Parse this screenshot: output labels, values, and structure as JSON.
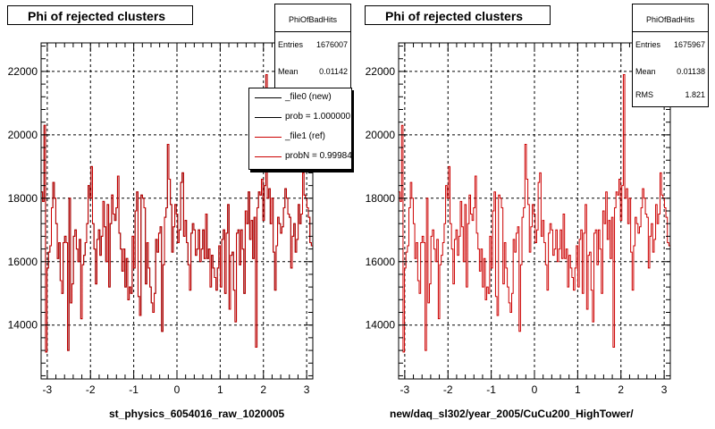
{
  "chart_data": [
    {
      "type": "line",
      "title": "Phi of rejected clusters",
      "xlabel": "st_physics_6054016_raw_1020005",
      "ylabel": "",
      "xlim": [
        -3.142,
        3.142
      ],
      "ylim": [
        12300,
        22900
      ],
      "grid": true,
      "x_ticks": [
        -3,
        -2,
        -1,
        0,
        1,
        2,
        3
      ],
      "y_ticks": [
        14000,
        16000,
        18000,
        20000,
        22000
      ],
      "stats": {
        "name": "PhiOfBadHits",
        "rows": [
          {
            "key": "Entries",
            "value": "1676007"
          },
          {
            "key": "Mean",
            "value": "0.01142"
          }
        ]
      },
      "legend": {
        "placement": "top-right",
        "entries": [
          {
            "label": "_file0 (new)",
            "color": "#000000"
          },
          {
            "label": "prob = 1.000000",
            "color": "#000000"
          },
          {
            "label": "_file1 (ref)",
            "color": "#cc0000"
          },
          {
            "label": "probN = 0.999843",
            "color": "#cc0000"
          }
        ]
      },
      "series": [
        {
          "color": "#000000",
          "values": [
            18200,
            17900,
            20300,
            13150,
            15800,
            16300,
            16500,
            17700,
            18500,
            18000,
            17200,
            16100,
            16600,
            15400,
            15000,
            16600,
            16800,
            16600,
            13200,
            18000,
            14700,
            15300,
            16800,
            17000,
            16400,
            16000,
            16700,
            14200,
            15900,
            16200,
            16600,
            17200,
            18400,
            18000,
            19000,
            17200,
            16400,
            15300,
            16700,
            17000,
            16200,
            16800,
            17900,
            17100,
            16000,
            17800,
            15200,
            17200,
            18100,
            17500,
            17300,
            17700,
            18700,
            16900,
            16400,
            15700,
            16400,
            15200,
            16100,
            14800,
            15200,
            15000,
            16800,
            15800,
            17600,
            18200,
            14900,
            14300,
            18100,
            18000,
            17700,
            15300,
            16600,
            15800,
            15200,
            14700,
            14400,
            15000,
            16700,
            16300,
            16900,
            17100,
            13800,
            15900,
            17400,
            17700,
            19700,
            18600,
            17800,
            16300,
            17100,
            17800,
            17500,
            16600,
            17000,
            18500,
            18800,
            16800,
            17300,
            16600,
            15900,
            15100,
            16900,
            17200,
            17000,
            16200,
            16400,
            17000,
            16000,
            16400,
            17000,
            16100,
            17500,
            16100,
            16400,
            15200,
            16200,
            15800,
            15500,
            15100,
            15800,
            16500,
            15200,
            16700,
            17000,
            15000,
            16900,
            17800,
            14500,
            16200,
            16300,
            15100,
            14100,
            16900,
            17000,
            15900,
            17000,
            16400,
            15000,
            17600,
            17200,
            18200,
            16700,
            17300,
            16100,
            17400,
            13300,
            17700,
            18200,
            18100,
            18600,
            17300,
            18400,
            21900,
            18000,
            18300,
            17200,
            18000,
            16300,
            15100,
            16500,
            17400,
            17200,
            16900,
            17100,
            17700,
            18300,
            18000,
            17500,
            17400,
            15800,
            16800,
            17200,
            16300,
            16700,
            17800,
            17200,
            17500,
            18800,
            18100,
            18000,
            17700,
            17400,
            16600,
            16500
          ]
        },
        {
          "color": "#cc0000",
          "values": [
            18200,
            17900,
            20300,
            13150,
            15800,
            16300,
            16500,
            17700,
            18500,
            18000,
            17200,
            16100,
            16600,
            15400,
            15000,
            16600,
            16800,
            16600,
            13200,
            18000,
            14700,
            15300,
            16800,
            17000,
            16400,
            16000,
            16700,
            14200,
            15900,
            16200,
            16600,
            17200,
            18400,
            18000,
            19000,
            17200,
            16400,
            15300,
            16700,
            17000,
            16200,
            16800,
            17900,
            17100,
            16000,
            17800,
            15200,
            17200,
            18100,
            17500,
            17300,
            17700,
            18700,
            16900,
            16400,
            15700,
            16400,
            15200,
            16100,
            14800,
            15200,
            15000,
            16800,
            15800,
            17600,
            18200,
            14900,
            14300,
            18100,
            18000,
            17700,
            15300,
            16600,
            15800,
            15200,
            14700,
            14400,
            15000,
            16700,
            16300,
            16900,
            17100,
            13800,
            15900,
            17400,
            17700,
            19700,
            18600,
            17800,
            16300,
            17100,
            17800,
            17500,
            16600,
            17000,
            18500,
            18800,
            16800,
            17300,
            16600,
            15900,
            15100,
            16900,
            17200,
            17000,
            16200,
            16400,
            17000,
            16000,
            16400,
            17000,
            16100,
            17500,
            16100,
            16400,
            15200,
            16200,
            15800,
            15500,
            15100,
            15800,
            16500,
            15200,
            16700,
            17000,
            15000,
            16900,
            17800,
            14500,
            16200,
            16300,
            15100,
            14100,
            16900,
            17000,
            15900,
            17000,
            16400,
            15000,
            17600,
            17200,
            18200,
            16700,
            17300,
            16100,
            17400,
            13300,
            17700,
            18200,
            18100,
            18600,
            17300,
            18400,
            21900,
            18000,
            18300,
            17200,
            18000,
            16300,
            15100,
            16500,
            17400,
            17200,
            16900,
            17100,
            17700,
            18300,
            18000,
            17500,
            17400,
            15800,
            16800,
            17200,
            16300,
            16700,
            17800,
            17200,
            17500,
            18800,
            18100,
            18000,
            17700,
            17400,
            16600,
            16500
          ]
        }
      ]
    },
    {
      "type": "line",
      "title": "Phi of rejected clusters",
      "xlabel": "new/daq_sl302/year_2005/CuCu200_HighTower/",
      "ylabel": "",
      "xlim": [
        -3.142,
        3.142
      ],
      "ylim": [
        12300,
        22900
      ],
      "grid": true,
      "x_ticks": [
        -3,
        -2,
        -1,
        0,
        1,
        2,
        3
      ],
      "y_ticks": [
        14000,
        16000,
        18000,
        20000,
        22000
      ],
      "stats": {
        "name": "PhiOfBadHits",
        "rows": [
          {
            "key": "Entries",
            "value": "1675967"
          },
          {
            "key": "Mean",
            "value": "0.01138"
          },
          {
            "key": "RMS",
            "value": "1.821"
          }
        ]
      },
      "series": [
        {
          "color": "#cc0000",
          "values": [
            18200,
            17900,
            20300,
            13150,
            15800,
            16300,
            16500,
            17700,
            18500,
            18000,
            17200,
            16100,
            16600,
            15400,
            15000,
            16600,
            16800,
            16600,
            13200,
            18000,
            14700,
            15300,
            16800,
            17000,
            16400,
            16000,
            16700,
            14200,
            15900,
            16200,
            16600,
            17200,
            18400,
            18000,
            19000,
            17200,
            16400,
            15300,
            16700,
            17000,
            16200,
            16800,
            17900,
            17100,
            16000,
            17800,
            15200,
            17200,
            18100,
            17500,
            17300,
            17700,
            18700,
            16900,
            16400,
            15700,
            16400,
            15200,
            16100,
            14800,
            15200,
            15000,
            16800,
            15800,
            17600,
            18200,
            14900,
            14300,
            18100,
            18000,
            17700,
            15300,
            16600,
            15800,
            15200,
            14700,
            14400,
            15000,
            16700,
            16300,
            16900,
            17100,
            13800,
            15900,
            17400,
            17700,
            19700,
            18600,
            17800,
            16300,
            17100,
            17800,
            17500,
            16600,
            17000,
            18500,
            18800,
            16800,
            17300,
            16600,
            15900,
            15100,
            16900,
            17200,
            17000,
            16200,
            16400,
            17000,
            16000,
            16400,
            17000,
            16100,
            17500,
            16100,
            16400,
            15200,
            16200,
            15800,
            15500,
            15100,
            15800,
            16500,
            15200,
            16700,
            17000,
            15000,
            16900,
            17800,
            14500,
            16200,
            16300,
            15100,
            14100,
            16900,
            17000,
            15900,
            17000,
            16400,
            15000,
            17600,
            17200,
            18200,
            16700,
            17300,
            16100,
            17400,
            13300,
            17700,
            18200,
            18100,
            18600,
            17300,
            18400,
            21900,
            18000,
            18300,
            17200,
            18000,
            16300,
            15100,
            16500,
            17400,
            17200,
            16900,
            17100,
            17700,
            18300,
            18000,
            17500,
            17400,
            15800,
            16800,
            17200,
            16300,
            16700,
            17800,
            17200,
            17500,
            18800,
            18100,
            18000,
            17700,
            17400,
            16600,
            16500
          ]
        }
      ]
    }
  ]
}
